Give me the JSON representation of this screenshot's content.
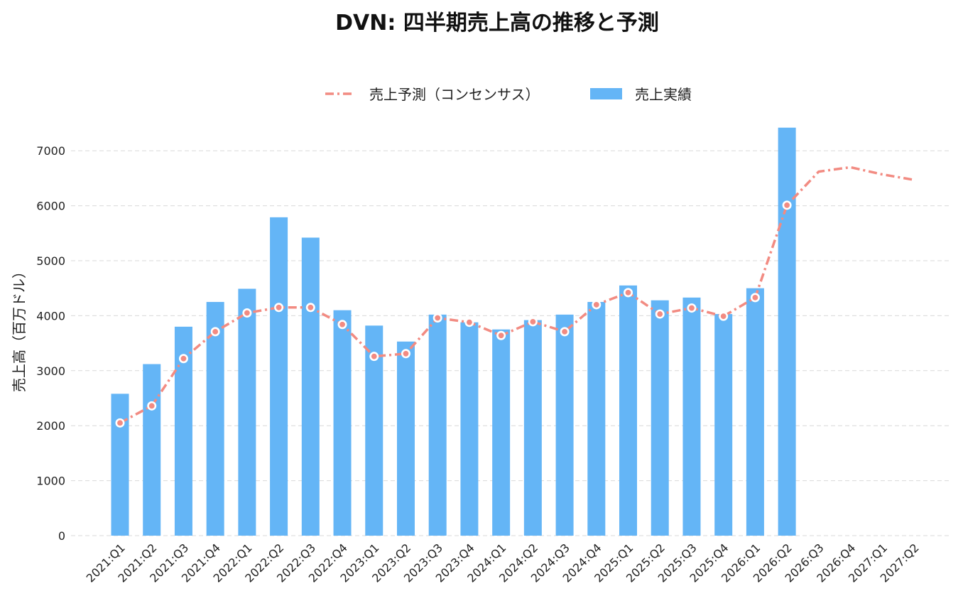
{
  "chart_data": {
    "type": "bar",
    "title": "DVN: 四半期売上高の推移と予測",
    "xlabel": "",
    "ylabel": "売上高（百万ドル）",
    "ylim": [
      0,
      7500
    ],
    "yticks": [
      0,
      1000,
      2000,
      3000,
      4000,
      5000,
      6000,
      7000
    ],
    "grid": true,
    "legend_position": "top-center",
    "categories": [
      "2021:Q1",
      "2021:Q2",
      "2021:Q3",
      "2021:Q4",
      "2022:Q1",
      "2022:Q2",
      "2022:Q3",
      "2022:Q4",
      "2023:Q1",
      "2023:Q2",
      "2023:Q3",
      "2023:Q4",
      "2024:Q1",
      "2024:Q2",
      "2024:Q3",
      "2024:Q4",
      "2025:Q1",
      "2025:Q2",
      "2025:Q3",
      "2025:Q4",
      "2026:Q1",
      "2026:Q2",
      "2026:Q3",
      "2026:Q4",
      "2027:Q1",
      "2027:Q2"
    ],
    "series": [
      {
        "name": "売上予測（コンセンサス）",
        "type": "line",
        "style": "dash-dot",
        "color": "#f28b82",
        "values": [
          2050,
          2360,
          3220,
          3710,
          4050,
          4150,
          4150,
          3840,
          3260,
          3310,
          3960,
          3880,
          3640,
          3890,
          3710,
          4200,
          4420,
          4030,
          4140,
          3990,
          4330,
          6010,
          6620,
          6700,
          6570,
          6470
        ]
      },
      {
        "name": "売上実績",
        "type": "bar",
        "color": "#64b5f6",
        "values": [
          2580,
          3120,
          3800,
          4250,
          4490,
          5790,
          5420,
          4100,
          3820,
          3530,
          4020,
          3880,
          3750,
          3920,
          4020,
          4250,
          4550,
          4280,
          4330,
          4030,
          4500,
          7420,
          null,
          null,
          null,
          null
        ]
      }
    ]
  }
}
